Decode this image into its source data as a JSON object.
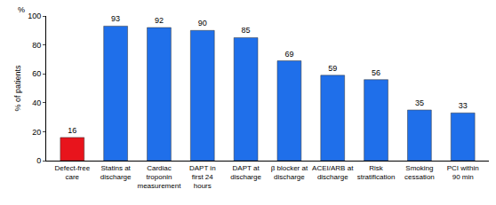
{
  "chart_data": {
    "type": "bar",
    "ylabel": "% of patients",
    "annotations": [
      "%"
    ],
    "categories": [
      "Defect-free care",
      "Statins at discharge",
      "Cardiac troponin measurement",
      "DAPT in first 24 hours",
      "DAPT at discharge",
      "β blocker at discharge",
      "ACEI/ARB at discharge",
      "Risk stratification",
      "Smoking cessation",
      "PCI within 90 min"
    ],
    "values": [
      16,
      93,
      92,
      90,
      85,
      69,
      59,
      56,
      35,
      33
    ],
    "colors": [
      "#e8141c",
      "#1f6fea",
      "#1f6fea",
      "#1f6fea",
      "#1f6fea",
      "#1f6fea",
      "#1f6fea",
      "#1f6fea",
      "#1f6fea",
      "#1f6fea"
    ],
    "ylim": [
      0,
      100
    ],
    "yticks": [
      0,
      20,
      40,
      60,
      80,
      100
    ],
    "grid": false,
    "data_labels": true
  }
}
